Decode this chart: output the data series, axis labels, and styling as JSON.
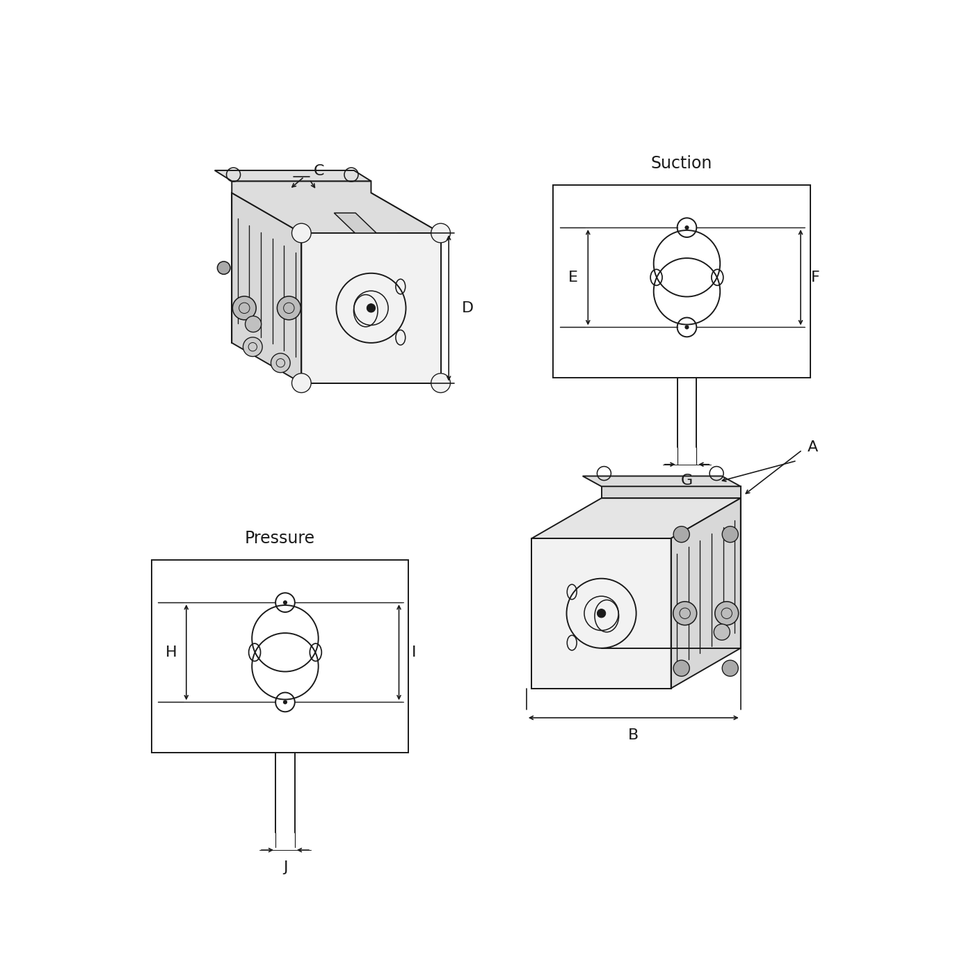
{
  "bg_color": "#ffffff",
  "line_color": "#1a1a1a",
  "text_color": "#1a1a1a",
  "title_fontsize": 17,
  "dim_fontsize": 16,
  "suction_label": "Suction",
  "pressure_label": "Pressure",
  "dim_labels": [
    "A",
    "B",
    "C",
    "D",
    "E",
    "F",
    "G",
    "H",
    "I",
    "J"
  ],
  "lw_main": 1.4,
  "lw_dim": 1.2,
  "lw_detail": 1.0
}
